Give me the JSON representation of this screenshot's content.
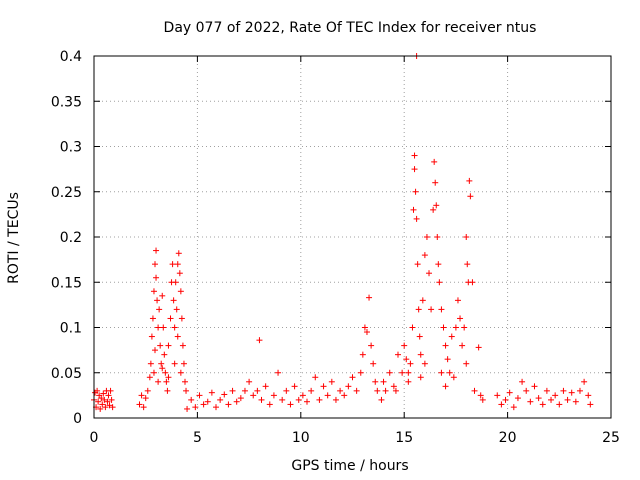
{
  "chart_data": {
    "type": "scatter",
    "title": "Day 077 of 2022, Rate Of TEC Index for receiver ntus",
    "xlabel": "GPS time / hours",
    "ylabel": "ROTI / TECUs",
    "xlim": [
      0,
      25
    ],
    "ylim": [
      0,
      0.4
    ],
    "xticks": [
      0,
      5,
      10,
      15,
      20,
      25
    ],
    "yticks": [
      0,
      0.05,
      0.1,
      0.15,
      0.2,
      0.25,
      0.3,
      0.35,
      0.4
    ],
    "xtick_labels": [
      "0",
      "5",
      "10",
      "15",
      "20",
      "25"
    ],
    "ytick_labels": [
      "0",
      "0.05",
      "0.1",
      "0.15",
      "0.2",
      "0.25",
      "0.3",
      "0.35",
      "0.4"
    ],
    "grid": true,
    "marker": "+",
    "color": "#ff0000",
    "series": [
      {
        "points": [
          [
            0.0,
            0.02
          ],
          [
            0.05,
            0.028
          ],
          [
            0.1,
            0.012
          ],
          [
            0.15,
            0.03
          ],
          [
            0.2,
            0.018
          ],
          [
            0.25,
            0.025
          ],
          [
            0.3,
            0.01
          ],
          [
            0.35,
            0.022
          ],
          [
            0.4,
            0.015
          ],
          [
            0.45,
            0.027
          ],
          [
            0.5,
            0.02
          ],
          [
            0.55,
            0.012
          ],
          [
            0.6,
            0.03
          ],
          [
            0.65,
            0.018
          ],
          [
            0.7,
            0.025
          ],
          [
            0.75,
            0.014
          ],
          [
            0.8,
            0.03
          ],
          [
            0.85,
            0.02
          ],
          [
            0.9,
            0.012
          ],
          [
            2.2,
            0.015
          ],
          [
            2.3,
            0.025
          ],
          [
            2.4,
            0.012
          ],
          [
            2.5,
            0.022
          ],
          [
            2.6,
            0.03
          ],
          [
            2.7,
            0.045
          ],
          [
            2.75,
            0.06
          ],
          [
            2.8,
            0.09
          ],
          [
            2.85,
            0.11
          ],
          [
            2.9,
            0.14
          ],
          [
            2.95,
            0.17
          ],
          [
            3.0,
            0.185
          ],
          [
            3.0,
            0.155
          ],
          [
            3.05,
            0.13
          ],
          [
            3.1,
            0.1
          ],
          [
            3.15,
            0.12
          ],
          [
            3.2,
            0.08
          ],
          [
            3.25,
            0.06
          ],
          [
            3.3,
            0.135
          ],
          [
            3.35,
            0.1
          ],
          [
            3.4,
            0.07
          ],
          [
            3.45,
            0.05
          ],
          [
            3.5,
            0.04
          ],
          [
            3.55,
            0.03
          ],
          [
            3.6,
            0.08
          ],
          [
            3.7,
            0.11
          ],
          [
            3.75,
            0.15
          ],
          [
            3.8,
            0.17
          ],
          [
            3.85,
            0.13
          ],
          [
            3.9,
            0.1
          ],
          [
            3.95,
            0.15
          ],
          [
            4.0,
            0.12
          ],
          [
            4.05,
            0.17
          ],
          [
            4.1,
            0.182
          ],
          [
            4.15,
            0.16
          ],
          [
            4.2,
            0.14
          ],
          [
            4.25,
            0.11
          ],
          [
            4.3,
            0.08
          ],
          [
            4.35,
            0.06
          ],
          [
            4.4,
            0.04
          ],
          [
            4.45,
            0.03
          ],
          [
            2.9,
            0.05
          ],
          [
            3.1,
            0.04
          ],
          [
            3.3,
            0.055
          ],
          [
            3.6,
            0.045
          ],
          [
            3.9,
            0.06
          ],
          [
            4.2,
            0.05
          ],
          [
            2.95,
            0.075
          ],
          [
            4.05,
            0.09
          ],
          [
            4.5,
            0.01
          ],
          [
            4.7,
            0.02
          ],
          [
            4.9,
            0.012
          ],
          [
            5.1,
            0.025
          ],
          [
            5.3,
            0.015
          ],
          [
            5.5,
            0.018
          ],
          [
            5.7,
            0.028
          ],
          [
            5.9,
            0.012
          ],
          [
            6.1,
            0.02
          ],
          [
            6.3,
            0.026
          ],
          [
            6.5,
            0.015
          ],
          [
            6.7,
            0.03
          ],
          [
            6.9,
            0.018
          ],
          [
            7.1,
            0.022
          ],
          [
            7.3,
            0.03
          ],
          [
            7.5,
            0.04
          ],
          [
            7.7,
            0.025
          ],
          [
            7.9,
            0.03
          ],
          [
            8.0,
            0.086
          ],
          [
            8.1,
            0.02
          ],
          [
            8.3,
            0.035
          ],
          [
            8.5,
            0.015
          ],
          [
            8.7,
            0.025
          ],
          [
            8.9,
            0.05
          ],
          [
            9.1,
            0.02
          ],
          [
            9.3,
            0.03
          ],
          [
            9.5,
            0.015
          ],
          [
            9.7,
            0.035
          ],
          [
            9.9,
            0.02
          ],
          [
            10.1,
            0.025
          ],
          [
            10.3,
            0.018
          ],
          [
            10.5,
            0.03
          ],
          [
            10.7,
            0.045
          ],
          [
            10.9,
            0.02
          ],
          [
            11.1,
            0.035
          ],
          [
            11.3,
            0.025
          ],
          [
            11.5,
            0.04
          ],
          [
            11.7,
            0.02
          ],
          [
            11.9,
            0.03
          ],
          [
            12.1,
            0.025
          ],
          [
            12.3,
            0.035
          ],
          [
            12.5,
            0.045
          ],
          [
            12.7,
            0.03
          ],
          [
            12.9,
            0.05
          ],
          [
            13.0,
            0.07
          ],
          [
            13.1,
            0.1
          ],
          [
            13.2,
            0.095
          ],
          [
            13.3,
            0.133
          ],
          [
            13.4,
            0.08
          ],
          [
            13.5,
            0.06
          ],
          [
            13.6,
            0.04
          ],
          [
            13.7,
            0.03
          ],
          [
            13.9,
            0.02
          ],
          [
            14.1,
            0.03
          ],
          [
            14.3,
            0.05
          ],
          [
            14.5,
            0.035
          ],
          [
            14.7,
            0.07
          ],
          [
            14.9,
            0.05
          ],
          [
            15.0,
            0.08
          ],
          [
            15.1,
            0.065
          ],
          [
            15.2,
            0.04
          ],
          [
            15.3,
            0.06
          ],
          [
            15.4,
            0.1
          ],
          [
            15.45,
            0.23
          ],
          [
            15.5,
            0.29
          ],
          [
            15.5,
            0.275
          ],
          [
            15.55,
            0.25
          ],
          [
            15.6,
            0.22
          ],
          [
            15.6,
            0.4
          ],
          [
            15.65,
            0.17
          ],
          [
            15.7,
            0.12
          ],
          [
            15.75,
            0.09
          ],
          [
            15.8,
            0.07
          ],
          [
            15.9,
            0.13
          ],
          [
            16.0,
            0.18
          ],
          [
            16.1,
            0.2
          ],
          [
            16.2,
            0.16
          ],
          [
            16.3,
            0.12
          ],
          [
            16.4,
            0.23
          ],
          [
            16.45,
            0.283
          ],
          [
            16.5,
            0.26
          ],
          [
            16.55,
            0.235
          ],
          [
            16.6,
            0.2
          ],
          [
            16.65,
            0.17
          ],
          [
            16.7,
            0.15
          ],
          [
            16.8,
            0.12
          ],
          [
            16.9,
            0.1
          ],
          [
            17.0,
            0.08
          ],
          [
            17.1,
            0.065
          ],
          [
            17.2,
            0.05
          ],
          [
            17.3,
            0.09
          ],
          [
            17.5,
            0.1
          ],
          [
            17.6,
            0.13
          ],
          [
            17.7,
            0.11
          ],
          [
            17.8,
            0.08
          ],
          [
            17.9,
            0.1
          ],
          [
            18.0,
            0.2
          ],
          [
            18.05,
            0.17
          ],
          [
            18.1,
            0.15
          ],
          [
            18.15,
            0.262
          ],
          [
            18.2,
            0.245
          ],
          [
            18.3,
            0.15
          ],
          [
            18.6,
            0.078
          ],
          [
            18.7,
            0.025
          ],
          [
            18.8,
            0.02
          ],
          [
            14.0,
            0.04
          ],
          [
            14.6,
            0.03
          ],
          [
            15.2,
            0.05
          ],
          [
            16.0,
            0.06
          ],
          [
            16.8,
            0.05
          ],
          [
            17.4,
            0.045
          ],
          [
            18.0,
            0.06
          ],
          [
            18.4,
            0.03
          ],
          [
            17.0,
            0.035
          ],
          [
            15.8,
            0.045
          ],
          [
            19.5,
            0.025
          ],
          [
            19.7,
            0.015
          ],
          [
            19.9,
            0.02
          ],
          [
            20.1,
            0.028
          ],
          [
            20.3,
            0.012
          ],
          [
            20.5,
            0.022
          ],
          [
            20.7,
            0.04
          ],
          [
            20.9,
            0.03
          ],
          [
            21.1,
            0.018
          ],
          [
            21.3,
            0.035
          ],
          [
            21.5,
            0.022
          ],
          [
            21.7,
            0.015
          ],
          [
            21.9,
            0.03
          ],
          [
            22.1,
            0.02
          ],
          [
            22.3,
            0.025
          ],
          [
            22.5,
            0.015
          ],
          [
            22.7,
            0.03
          ],
          [
            22.9,
            0.02
          ],
          [
            23.1,
            0.028
          ],
          [
            23.3,
            0.018
          ],
          [
            23.5,
            0.03
          ],
          [
            23.7,
            0.04
          ],
          [
            23.9,
            0.025
          ],
          [
            24.0,
            0.015
          ]
        ]
      }
    ]
  }
}
